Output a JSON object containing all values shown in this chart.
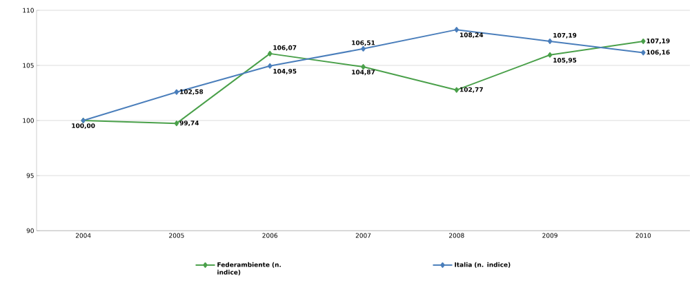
{
  "chart_data": {
    "type": "line",
    "categories": [
      "2004",
      "2005",
      "2006",
      "2007",
      "2008",
      "2009",
      "2010"
    ],
    "series": [
      {
        "name": "Federambiente (n. indice)",
        "color": "#4aa04a",
        "values": [
          100.0,
          99.74,
          106.07,
          104.87,
          102.77,
          105.95,
          107.19
        ],
        "value_labels": [
          "100,00",
          "99,74",
          "106,07",
          "104,87",
          "102,77",
          "105,95",
          "107,19"
        ]
      },
      {
        "name": "Italia (n. indice)",
        "color": "#4a7ebb",
        "values": [
          100.0,
          102.58,
          104.95,
          106.51,
          108.24,
          107.19,
          106.16
        ],
        "value_labels": [
          null,
          "102,58",
          "104,95",
          "106,51",
          "108,24",
          "107,19",
          "106,16"
        ]
      }
    ],
    "ylim": [
      90,
      110
    ],
    "yticks": [
      90,
      95,
      100,
      105,
      110
    ],
    "grid": "y",
    "legend": "bottom",
    "marker": "diamond",
    "line_style": "solid"
  }
}
